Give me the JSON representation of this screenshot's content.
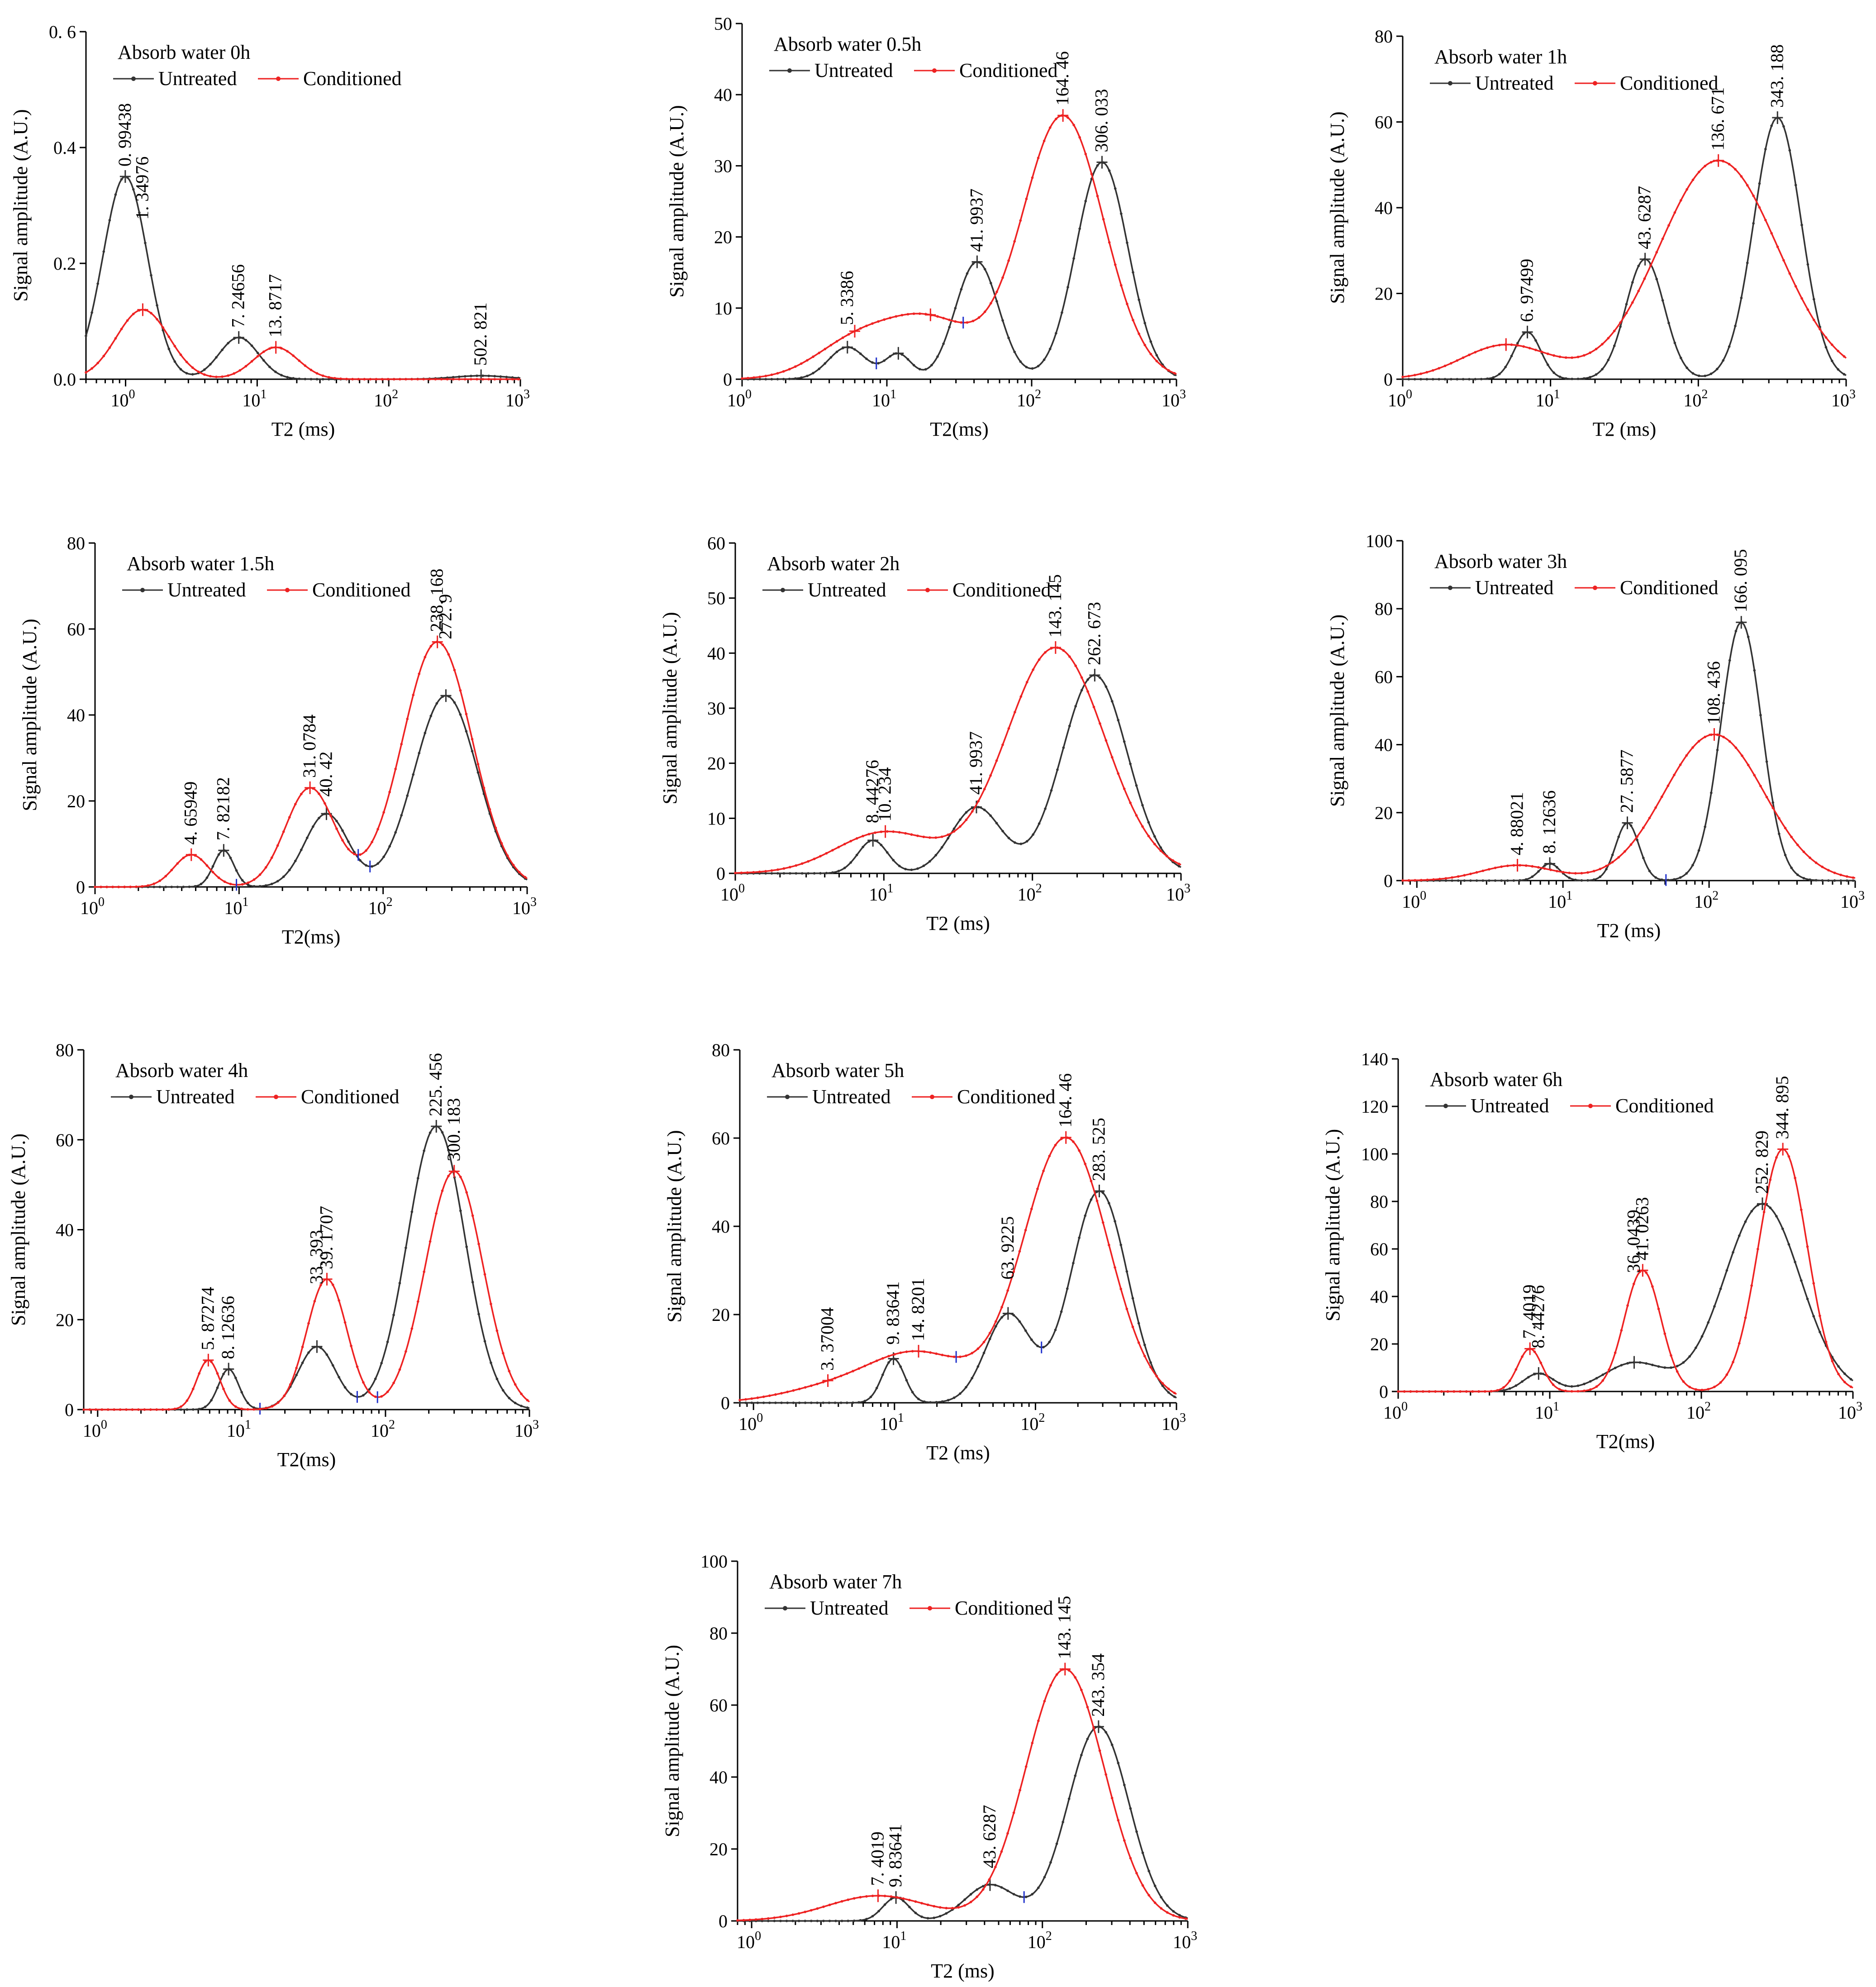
{
  "colors": {
    "untreated": "#333333",
    "conditioned": "#ee2222",
    "marker": "#2233cc",
    "axis": "#000000"
  },
  "legend": {
    "untreated": "Untreated",
    "conditioned": "Conditioned"
  },
  "chart_data": [
    {
      "type": "line",
      "title": "Absorb water 0h",
      "xlabel": "T2 (ms)",
      "ylabel": "Signal amplitude (A.U.)",
      "xscale": "log",
      "xlim": [
        0.5,
        1000
      ],
      "ylim": [
        0,
        0.6
      ],
      "yticks": [
        0,
        0.2,
        0.4,
        0.6
      ],
      "ytick_labels": [
        "0.0",
        "0.2",
        "0.4",
        "0. 6"
      ],
      "xticks": [
        1,
        10,
        100,
        1000
      ],
      "legend_loc": "top-left",
      "series": [
        {
          "name": "Untreated",
          "peaks": [
            {
              "x": 0.99438,
              "y": 0.35,
              "w": 0.17
            },
            {
              "x": 7.24656,
              "y": 0.072,
              "w": 0.15
            },
            {
              "x": 502.821,
              "y": 0.006,
              "w": 0.2
            }
          ]
        },
        {
          "name": "Conditioned",
          "peaks": [
            {
              "x": 1.34976,
              "y": 0.12,
              "w": 0.2
            },
            {
              "x": 13.8717,
              "y": 0.055,
              "w": 0.17
            }
          ]
        }
      ],
      "labels": [
        "0. 99438",
        "1. 34976",
        "7. 24656",
        "13. 8717",
        "502. 821"
      ]
    },
    {
      "type": "line",
      "title": "Absorb water 0.5h",
      "xlabel": "T2(ms)",
      "ylabel": "Signal amplitude (A.U.)",
      "xscale": "log",
      "xlim": [
        1,
        1000
      ],
      "ylim": [
        0,
        50
      ],
      "yticks": [
        0,
        10,
        20,
        30,
        40,
        50
      ],
      "xticks": [
        1,
        10,
        100,
        1000
      ],
      "legend_loc": "top-left",
      "series": [
        {
          "name": "Untreated",
          "peaks": [
            {
              "x": 5.3386,
              "y": 4.5,
              "w": 0.13
            },
            {
              "x": 12,
              "y": 3.5,
              "w": 0.09
            },
            {
              "x": 41.9937,
              "y": 16.5,
              "w": 0.15
            },
            {
              "x": 306.033,
              "y": 30.5,
              "w": 0.18
            }
          ]
        },
        {
          "name": "Conditioned",
          "peaks": [
            {
              "x": 6,
              "y": 5,
              "w": 0.28
            },
            {
              "x": 20,
              "y": 8,
              "w": 0.3
            },
            {
              "x": 164.46,
              "y": 37,
              "w": 0.28
            }
          ]
        }
      ],
      "labels": [
        "5. 3386",
        "41. 9937",
        "164. 46",
        "306. 033"
      ]
    },
    {
      "type": "line",
      "title": "Absorb water 1h",
      "xlabel": "T2 (ms)",
      "ylabel": "Signal amplitude (A.U.)",
      "xscale": "log",
      "xlim": [
        1,
        1000
      ],
      "ylim": [
        0,
        80
      ],
      "yticks": [
        0,
        20,
        40,
        60,
        80
      ],
      "xticks": [
        1,
        10,
        100,
        1000
      ],
      "legend_loc": "top-left",
      "series": [
        {
          "name": "Untreated",
          "peaks": [
            {
              "x": 6.97499,
              "y": 11,
              "w": 0.09
            },
            {
              "x": 43.6287,
              "y": 28,
              "w": 0.13
            },
            {
              "x": 343.188,
              "y": 61,
              "w": 0.16
            }
          ]
        },
        {
          "name": "Conditioned",
          "peaks": [
            {
              "x": 5,
              "y": 8,
              "w": 0.3
            },
            {
              "x": 136.671,
              "y": 51,
              "w": 0.4
            }
          ]
        }
      ],
      "labels": [
        "6. 97499",
        "43. 6287",
        "136. 671",
        "343. 188"
      ]
    },
    {
      "type": "line",
      "title": "Absorb water 1.5h",
      "xlabel": "T2(ms)",
      "ylabel": "Signal amplitude (A.U.)",
      "xscale": "log",
      "xlim": [
        1,
        1000
      ],
      "ylim": [
        0,
        80
      ],
      "yticks": [
        0,
        20,
        40,
        60,
        80
      ],
      "xticks": [
        1,
        10,
        100,
        1000
      ],
      "legend_loc": "top-left",
      "series": [
        {
          "name": "Untreated",
          "peaks": [
            {
              "x": 7.82182,
              "y": 8.5,
              "w": 0.07
            },
            {
              "x": 40.42,
              "y": 17,
              "w": 0.15
            },
            {
              "x": 272.9,
              "y": 44.5,
              "w": 0.22
            }
          ]
        },
        {
          "name": "Conditioned",
          "peaks": [
            {
              "x": 4.65949,
              "y": 7.5,
              "w": 0.12
            },
            {
              "x": 31.0784,
              "y": 23,
              "w": 0.17
            },
            {
              "x": 238.168,
              "y": 57,
              "w": 0.24
            }
          ]
        }
      ],
      "labels": [
        "4. 65949",
        "7. 82182",
        "31. 0784",
        "40. 42",
        "238. 168",
        "272. 9"
      ]
    },
    {
      "type": "line",
      "title": "Absorb water 2h",
      "xlabel": "T2 (ms)",
      "ylabel": "Signal amplitude (A.U.)",
      "xscale": "log",
      "xlim": [
        1,
        1000
      ],
      "ylim": [
        0,
        60
      ],
      "yticks": [
        0,
        10,
        20,
        30,
        40,
        50,
        60
      ],
      "xticks": [
        1,
        10,
        100,
        1000
      ],
      "legend_loc": "top-left",
      "series": [
        {
          "name": "Untreated",
          "peaks": [
            {
              "x": 8.44276,
              "y": 6,
              "w": 0.1
            },
            {
              "x": 41.9937,
              "y": 12,
              "w": 0.17
            },
            {
              "x": 262.673,
              "y": 36,
              "w": 0.22
            }
          ]
        },
        {
          "name": "Conditioned",
          "peaks": [
            {
              "x": 10.234,
              "y": 7.5,
              "w": 0.33
            },
            {
              "x": 143.145,
              "y": 41,
              "w": 0.33
            }
          ]
        }
      ],
      "labels": [
        "8. 44276",
        "10. 234",
        "41. 9937",
        "143. 145",
        "262. 673"
      ]
    },
    {
      "type": "line",
      "title": "Absorb water 3h",
      "xlabel": "T2 (ms)",
      "ylabel": "Signal amplitude (A.U.)",
      "xscale": "log",
      "xlim": [
        0.8,
        1000
      ],
      "ylim": [
        0,
        100
      ],
      "yticks": [
        0,
        20,
        40,
        60,
        80,
        100
      ],
      "xticks": [
        1,
        10,
        100,
        1000
      ],
      "legend_loc": "top-left",
      "series": [
        {
          "name": "Untreated",
          "peaks": [
            {
              "x": 8.12636,
              "y": 5,
              "w": 0.07
            },
            {
              "x": 27.5877,
              "y": 17,
              "w": 0.08
            },
            {
              "x": 166.095,
              "y": 76,
              "w": 0.14
            }
          ]
        },
        {
          "name": "Conditioned",
          "peaks": [
            {
              "x": 4.88021,
              "y": 4.5,
              "w": 0.25
            },
            {
              "x": 108.436,
              "y": 43,
              "w": 0.34
            }
          ]
        }
      ],
      "labels": [
        "4. 88021",
        "8. 12636",
        "27. 5877",
        "108. 436",
        "166. 095"
      ]
    },
    {
      "type": "line",
      "title": "Absorb water 4h",
      "xlabel": "T2(ms)",
      "ylabel": "Signal amplitude (A.U.)",
      "xscale": "log",
      "xlim": [
        0.8,
        1000
      ],
      "ylim": [
        0,
        80
      ],
      "yticks": [
        0,
        20,
        40,
        60,
        80
      ],
      "xticks": [
        1,
        10,
        100,
        1000
      ],
      "legend_loc": "top-left",
      "series": [
        {
          "name": "Untreated",
          "peaks": [
            {
              "x": 8.12636,
              "y": 9,
              "w": 0.07
            },
            {
              "x": 33.393,
              "y": 14,
              "w": 0.13
            },
            {
              "x": 225.456,
              "y": 63,
              "w": 0.2
            }
          ]
        },
        {
          "name": "Conditioned",
          "peaks": [
            {
              "x": 5.87274,
              "y": 11,
              "w": 0.08
            },
            {
              "x": 39.1707,
              "y": 29,
              "w": 0.14
            },
            {
              "x": 300.183,
              "y": 53,
              "w": 0.2
            }
          ]
        }
      ],
      "labels": [
        "5. 87274",
        "8. 12636",
        "33. 393",
        "39. 1707",
        "225. 456",
        "300. 183"
      ]
    },
    {
      "type": "line",
      "title": "Absorb water 5h",
      "xlabel": "T2 (ms)",
      "ylabel": "Signal amplitude (A.U.)",
      "xscale": "log",
      "xlim": [
        0.8,
        1000
      ],
      "ylim": [
        0,
        80
      ],
      "yticks": [
        0,
        20,
        40,
        60,
        80
      ],
      "xticks": [
        1,
        10,
        100,
        1000
      ],
      "legend_loc": "top-left",
      "series": [
        {
          "name": "Untreated",
          "peaks": [
            {
              "x": 9.83641,
              "y": 10,
              "w": 0.08
            },
            {
              "x": 63.9225,
              "y": 20,
              "w": 0.16
            },
            {
              "x": 283.525,
              "y": 48,
              "w": 0.2
            }
          ]
        },
        {
          "name": "Conditioned",
          "peaks": [
            {
              "x": 3.37004,
              "y": 3,
              "w": 0.35
            },
            {
              "x": 14.8201,
              "y": 11,
              "w": 0.35
            },
            {
              "x": 164.46,
              "y": 60,
              "w": 0.3
            }
          ]
        }
      ],
      "labels": [
        "3. 37004",
        "9. 83641",
        "14. 8201",
        "63. 9225",
        "164. 46",
        "283. 525"
      ]
    },
    {
      "type": "line",
      "title": "Absorb water 6h",
      "xlabel": "T2(ms)",
      "ylabel": "Signal amplitude (A.U.)",
      "xscale": "log",
      "xlim": [
        1,
        1000
      ],
      "ylim": [
        0,
        140
      ],
      "yticks": [
        0,
        20,
        40,
        60,
        80,
        100,
        120,
        140
      ],
      "xticks": [
        1,
        10,
        100,
        1000
      ],
      "legend_loc": "top-left",
      "series": [
        {
          "name": "Untreated",
          "peaks": [
            {
              "x": 8.44276,
              "y": 7.5,
              "w": 0.1
            },
            {
              "x": 36.0439,
              "y": 12,
              "w": 0.2
            },
            {
              "x": 252.829,
              "y": 79,
              "w": 0.25
            }
          ]
        },
        {
          "name": "Conditioned",
          "peaks": [
            {
              "x": 7.4019,
              "y": 18,
              "w": 0.08
            },
            {
              "x": 41.0263,
              "y": 51,
              "w": 0.12
            },
            {
              "x": 344.895,
              "y": 102,
              "w": 0.16
            }
          ]
        }
      ],
      "labels": [
        "7. 4019",
        "8. 44276",
        "36. 0439",
        "41. 0263",
        "252. 829",
        "344. 895"
      ]
    },
    {
      "type": "line",
      "title": "Absorb water 7h",
      "xlabel": "T2 (ms)",
      "ylabel": "Signal amplitude (A.U.)",
      "xscale": "log",
      "xlim": [
        0.8,
        1000
      ],
      "ylim": [
        0,
        100
      ],
      "yticks": [
        0,
        20,
        40,
        60,
        80,
        100
      ],
      "xticks": [
        1,
        10,
        100,
        1000
      ],
      "legend_loc": "top-left",
      "series": [
        {
          "name": "Untreated",
          "peaks": [
            {
              "x": 9.83641,
              "y": 6.5,
              "w": 0.09
            },
            {
              "x": 43.6287,
              "y": 10,
              "w": 0.17
            },
            {
              "x": 243.354,
              "y": 54,
              "w": 0.21
            }
          ]
        },
        {
          "name": "Conditioned",
          "peaks": [
            {
              "x": 7.4019,
              "y": 7,
              "w": 0.35
            },
            {
              "x": 143.145,
              "y": 70,
              "w": 0.27
            }
          ]
        }
      ],
      "labels": [
        "7. 4019",
        "9. 83641",
        "43. 6287",
        "143. 145",
        "243. 354"
      ]
    }
  ]
}
